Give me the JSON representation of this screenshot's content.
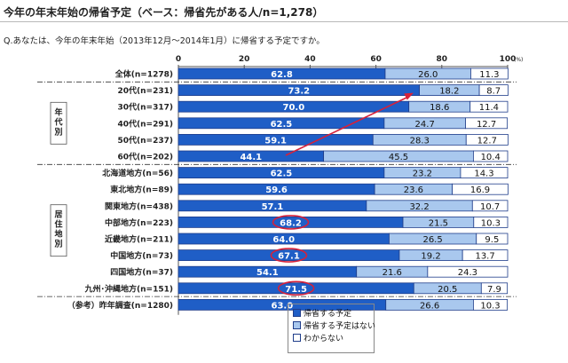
{
  "title": "今年の年末年始の帰省予定（ベース：帰省先がある人/n=1,278）",
  "question": "Q.あなたは、今年の年末年始（2013年12月～2014年1月）に帰省する予定ですか。",
  "colors": {
    "plan": "#1f5ec6",
    "no_plan": "#a9c8ee",
    "unknown": "#ffffff",
    "highlight": "#d6213a",
    "border": "#1f3d8a"
  },
  "chart_data": {
    "type": "bar",
    "orientation": "horizontal",
    "stacked": true,
    "xlim": [
      0,
      100
    ],
    "x_ticks": [
      "0",
      "20",
      "40",
      "60",
      "80",
      "100"
    ],
    "x_unit": "(%)",
    "categories": [
      "全体(n=1278)",
      "20代(n=231)",
      "30代(n=317)",
      "40代(n=291)",
      "50代(n=237)",
      "60代(n=202)",
      "北海道地方(n=56)",
      "東北地方(n=89)",
      "関東地方(n=438)",
      "中部地方(n=223)",
      "近畿地方(n=211)",
      "中国地方(n=73)",
      "四国地方(n=37)",
      "九州･沖縄地方(n=151)",
      "（参考）昨年調査(n=1280)"
    ],
    "groups": [
      {
        "label": "年代別",
        "from": 1,
        "to": 5
      },
      {
        "label": "居住地別",
        "from": 6,
        "to": 13
      }
    ],
    "series": [
      {
        "name": "帰省する予定",
        "values": [
          62.8,
          73.2,
          70.0,
          62.5,
          59.1,
          44.1,
          62.5,
          59.6,
          57.1,
          68.2,
          64.0,
          67.1,
          54.1,
          71.5,
          63.0
        ]
      },
      {
        "name": "帰省する予定はない",
        "values": [
          26.0,
          18.2,
          18.6,
          24.7,
          28.3,
          45.5,
          23.2,
          23.6,
          32.2,
          21.5,
          26.5,
          19.2,
          21.6,
          20.5,
          26.6
        ]
      },
      {
        "name": "わからない",
        "values": [
          11.3,
          8.7,
          11.4,
          12.7,
          12.7,
          10.4,
          14.3,
          16.9,
          10.7,
          10.3,
          9.5,
          13.7,
          24.3,
          7.9,
          10.3
        ]
      }
    ],
    "labels": [
      [
        "62.8",
        "26.0",
        "11.3"
      ],
      [
        "73.2",
        "18.2",
        "8.7"
      ],
      [
        "70.0",
        "18.6",
        "11.4"
      ],
      [
        "62.5",
        "24.7",
        "12.7"
      ],
      [
        "59.1",
        "28.3",
        "12.7"
      ],
      [
        "44.1",
        "45.5",
        "10.4"
      ],
      [
        "62.5",
        "23.2",
        "14.3"
      ],
      [
        "59.6",
        "23.6",
        "16.9"
      ],
      [
        "57.1",
        "32.2",
        "10.7"
      ],
      [
        "68.2",
        "21.5",
        "10.3"
      ],
      [
        "64.0",
        "26.5",
        "9.5"
      ],
      [
        "67.1",
        "19.2",
        "13.7"
      ],
      [
        "54.1",
        "21.6",
        "24.3"
      ],
      [
        "71.5",
        "20.5",
        "7.9"
      ],
      [
        "63.0",
        "26.6",
        "10.3"
      ]
    ],
    "highlighted_rows": [
      9,
      11,
      13
    ],
    "arrow": {
      "from_row": 5,
      "to_row": 1
    },
    "legend": [
      "帰省する予定",
      "帰省する予定はない",
      "わからない"
    ],
    "legend_placement": "bottom"
  }
}
